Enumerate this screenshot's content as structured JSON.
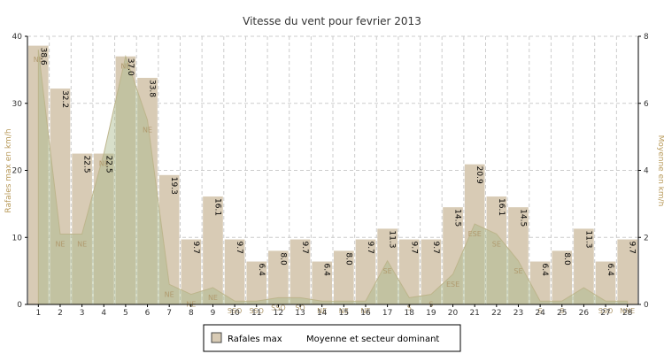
{
  "chart_data": {
    "type": "bar",
    "title": "Vitesse du vent pour fevrier 2013",
    "ylabel_left": "Rafales max en km/h",
    "ylabel_right": "Moyenne en km/h",
    "ylim_left": [
      0,
      40
    ],
    "ylim_right": [
      0,
      8
    ],
    "yticks_left": [
      "0",
      "10",
      "20",
      "30",
      "40"
    ],
    "yticks_right": [
      "0",
      "2",
      "4",
      "6",
      "8"
    ],
    "categories": [
      "1",
      "2",
      "3",
      "4",
      "5",
      "6",
      "7",
      "8",
      "9",
      "10",
      "11",
      "12",
      "13",
      "14",
      "15",
      "16",
      "17",
      "18",
      "19",
      "20",
      "21",
      "22",
      "23",
      "24",
      "25",
      "26",
      "27",
      "28"
    ],
    "grid": true,
    "legend_position": "bottom",
    "bar_color": "#d8cbb5",
    "area_color": "#a9b98a",
    "series": [
      {
        "name": "Rafales max",
        "axis": "left",
        "values": [
          38.6,
          32.2,
          22.5,
          22.5,
          37.0,
          33.8,
          19.3,
          9.7,
          16.1,
          9.7,
          6.4,
          8.0,
          9.7,
          6.4,
          8.0,
          9.7,
          11.3,
          9.7,
          9.7,
          14.5,
          20.9,
          16.1,
          14.5,
          6.4,
          8.0,
          11.3,
          6.4,
          9.7
        ],
        "labels": [
          "38.6",
          "32.2",
          "22.5",
          "22.5",
          "37.0",
          "33.8",
          "19.3",
          "9.7",
          "16.1",
          "9.7",
          "6.4",
          "8.0",
          "9.7",
          "6.4",
          "8.0",
          "9.7",
          "11.3",
          "9.7",
          "9.7",
          "14.5",
          "20.9",
          "16.1",
          "14.5",
          "6.4",
          "8.0",
          "11.3",
          "6.4",
          "9.7"
        ]
      },
      {
        "name": "Moyenne et secteur dominant",
        "axis": "right",
        "values": [
          7.6,
          2.1,
          2.1,
          4.5,
          7.4,
          5.5,
          0.6,
          0.3,
          0.5,
          0.1,
          0.1,
          0.2,
          0.2,
          0.1,
          0.1,
          0.1,
          1.3,
          0.2,
          0.3,
          0.9,
          2.4,
          2.1,
          1.3,
          0.1,
          0.1,
          0.5,
          0.1,
          0.1
        ],
        "sectors": [
          "NE",
          "NE",
          "NE",
          "NE",
          "NE",
          "NE",
          "NE",
          "NE",
          "NE",
          "SSO",
          "SSO",
          "SSO",
          "SO",
          "NE",
          "NE",
          "NE",
          "SE",
          "S",
          "S",
          "ESE",
          "ESE",
          "SE",
          "SE",
          "S",
          "S",
          "",
          "SSO",
          "NNE"
        ]
      }
    ]
  }
}
